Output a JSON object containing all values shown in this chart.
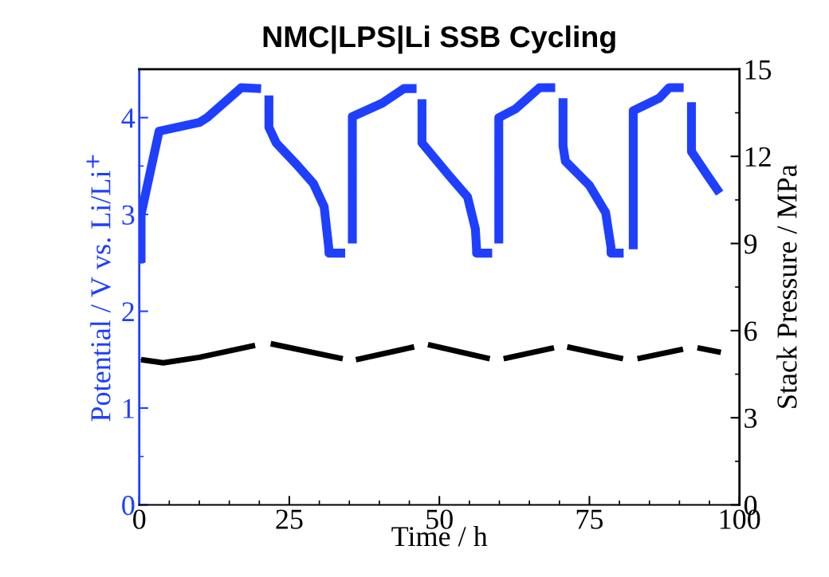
{
  "chart_data": {
    "type": "line",
    "title": "NMC|LPS|Li SSB Cycling",
    "xlabel": "Time / h",
    "ylabel": "Potential / V vs. Li/Li$^{+}$",
    "y2label": "Stack Pressure / MPa",
    "xlim": [
      0,
      100
    ],
    "xticks": [
      0,
      25,
      50,
      75,
      100
    ],
    "ylim": [
      0,
      4.5
    ],
    "yticks": [
      0,
      1,
      2,
      3,
      4
    ],
    "y2lim": [
      0,
      15
    ],
    "y2ticks": [
      0,
      3,
      6,
      9,
      12,
      15
    ],
    "grid": false,
    "legend": false,
    "line_style": "solid",
    "marker": "none",
    "series": [
      {
        "color": "#1f3fff",
        "x": [
          0.3,
          0.3,
          3.3,
          10,
          11.3,
          17,
          20.3,
          null,
          21.6,
          21.6,
          22.8,
          26.3,
          29,
          30.8,
          31.6,
          31.6,
          34.3,
          null,
          35.5,
          35.5,
          40.5,
          44.1,
          46.2,
          null,
          47.1,
          47.1,
          51.5,
          54.7,
          56,
          56.2,
          56.2,
          58.8,
          null,
          59.9,
          59.9,
          62.7,
          66.7,
          69.3,
          null,
          70.6,
          70.6,
          71,
          75,
          77.7,
          78.6,
          78.6,
          80.7,
          null,
          82.3,
          82.3,
          86.6,
          88.3,
          90.7,
          null,
          92,
          92,
          94.6,
          96.7
        ],
        "values": [
          2.5,
          3.0,
          3.86,
          3.95,
          4.0,
          4.31,
          4.3,
          null,
          4.23,
          3.9,
          3.74,
          3.51,
          3.32,
          3.08,
          2.64,
          2.6,
          2.6,
          null,
          2.7,
          4.01,
          4.15,
          4.3,
          4.3,
          null,
          4.19,
          3.74,
          3.41,
          3.18,
          2.85,
          2.64,
          2.6,
          2.6,
          null,
          2.7,
          4.0,
          4.09,
          4.31,
          4.31,
          null,
          4.2,
          3.71,
          3.55,
          3.3,
          3.02,
          2.66,
          2.6,
          2.6,
          null,
          2.64,
          4.07,
          4.2,
          4.31,
          4.31,
          null,
          4.16,
          3.65,
          3.41,
          3.22
        ]
      },
      {
        "color": "#000000",
        "axis": "y2",
        "x": [
          0.3,
          4,
          10,
          19.3,
          null,
          21.9,
          33.9,
          null,
          36.1,
          45.8,
          null,
          48.1,
          58.4,
          null,
          60.7,
          69.1,
          null,
          71.3,
          80.6,
          null,
          83,
          90.6,
          null,
          93,
          96.9
        ],
        "values": [
          5.0,
          4.89,
          5.08,
          5.49,
          null,
          5.55,
          5.03,
          null,
          5.0,
          5.44,
          null,
          5.52,
          5.03,
          null,
          5.03,
          5.41,
          null,
          5.44,
          5.03,
          null,
          5.03,
          5.36,
          null,
          5.41,
          5.25
        ]
      }
    ]
  }
}
